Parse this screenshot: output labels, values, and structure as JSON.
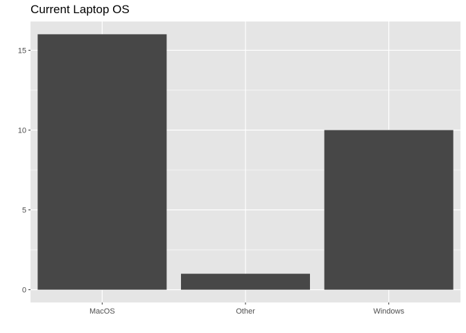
{
  "chart_data": {
    "type": "bar",
    "title": "Current Laptop OS",
    "xlabel": "",
    "ylabel": "",
    "categories": [
      "MacOS",
      "Other",
      "Windows"
    ],
    "values": [
      16,
      1,
      10
    ],
    "ylim": [
      -0.8,
      16.8
    ],
    "yticks": [
      0,
      5,
      10,
      15
    ],
    "grid": true,
    "legend": "none",
    "colors": {
      "bar": "#474747",
      "panel": "#e5e5e5",
      "grid": "#ffffff"
    }
  }
}
